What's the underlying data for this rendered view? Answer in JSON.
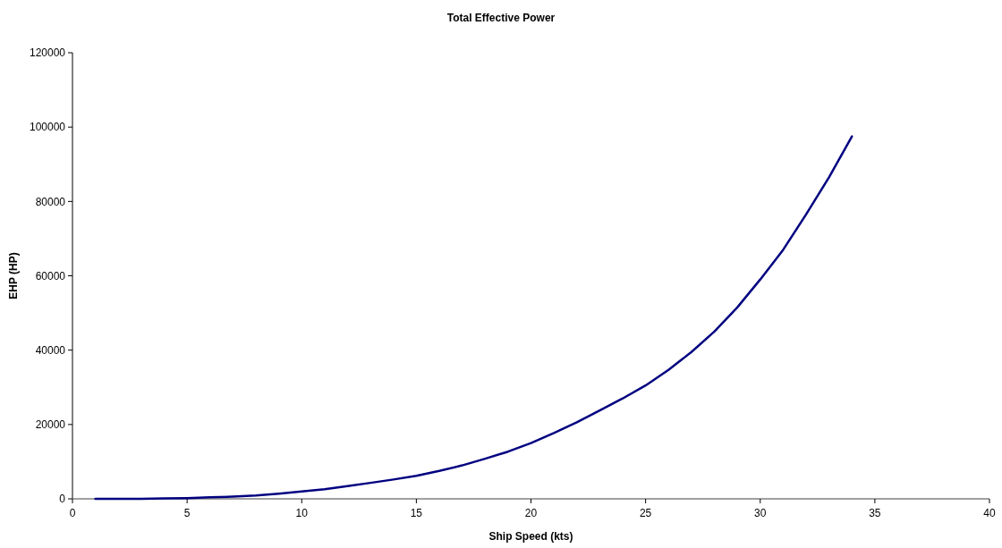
{
  "chart_data": {
    "type": "line",
    "title": "Total Effective Power",
    "xlabel": "Ship Speed (kts)",
    "ylabel": "EHP (HP)",
    "x": [
      1,
      2,
      3,
      4,
      5,
      6,
      7,
      8,
      9,
      10,
      11,
      12,
      13,
      14,
      15,
      16,
      17,
      18,
      19,
      20,
      21,
      22,
      23,
      24,
      25,
      26,
      27,
      28,
      29,
      30,
      31,
      32,
      33,
      34
    ],
    "series": [
      {
        "color": "#000080",
        "values": [
          0,
          0,
          0,
          100,
          200,
          400,
          600,
          900,
          1400,
          2000,
          2600,
          3400,
          4300,
          5200,
          6200,
          7500,
          9000,
          10800,
          12700,
          15000,
          17700,
          20600,
          23800,
          27000,
          30500,
          34700,
          39500,
          45000,
          51500,
          59000,
          67000,
          76500,
          86500,
          97500
        ]
      }
    ],
    "xlim": [
      0,
      40
    ],
    "xticks": [
      0,
      5,
      10,
      15,
      20,
      25,
      30,
      35,
      40
    ],
    "ylim": [
      0,
      120000
    ],
    "yticks": [
      0,
      20000,
      40000,
      60000,
      80000,
      100000,
      120000
    ],
    "marker": "none",
    "line_style": "solid"
  }
}
